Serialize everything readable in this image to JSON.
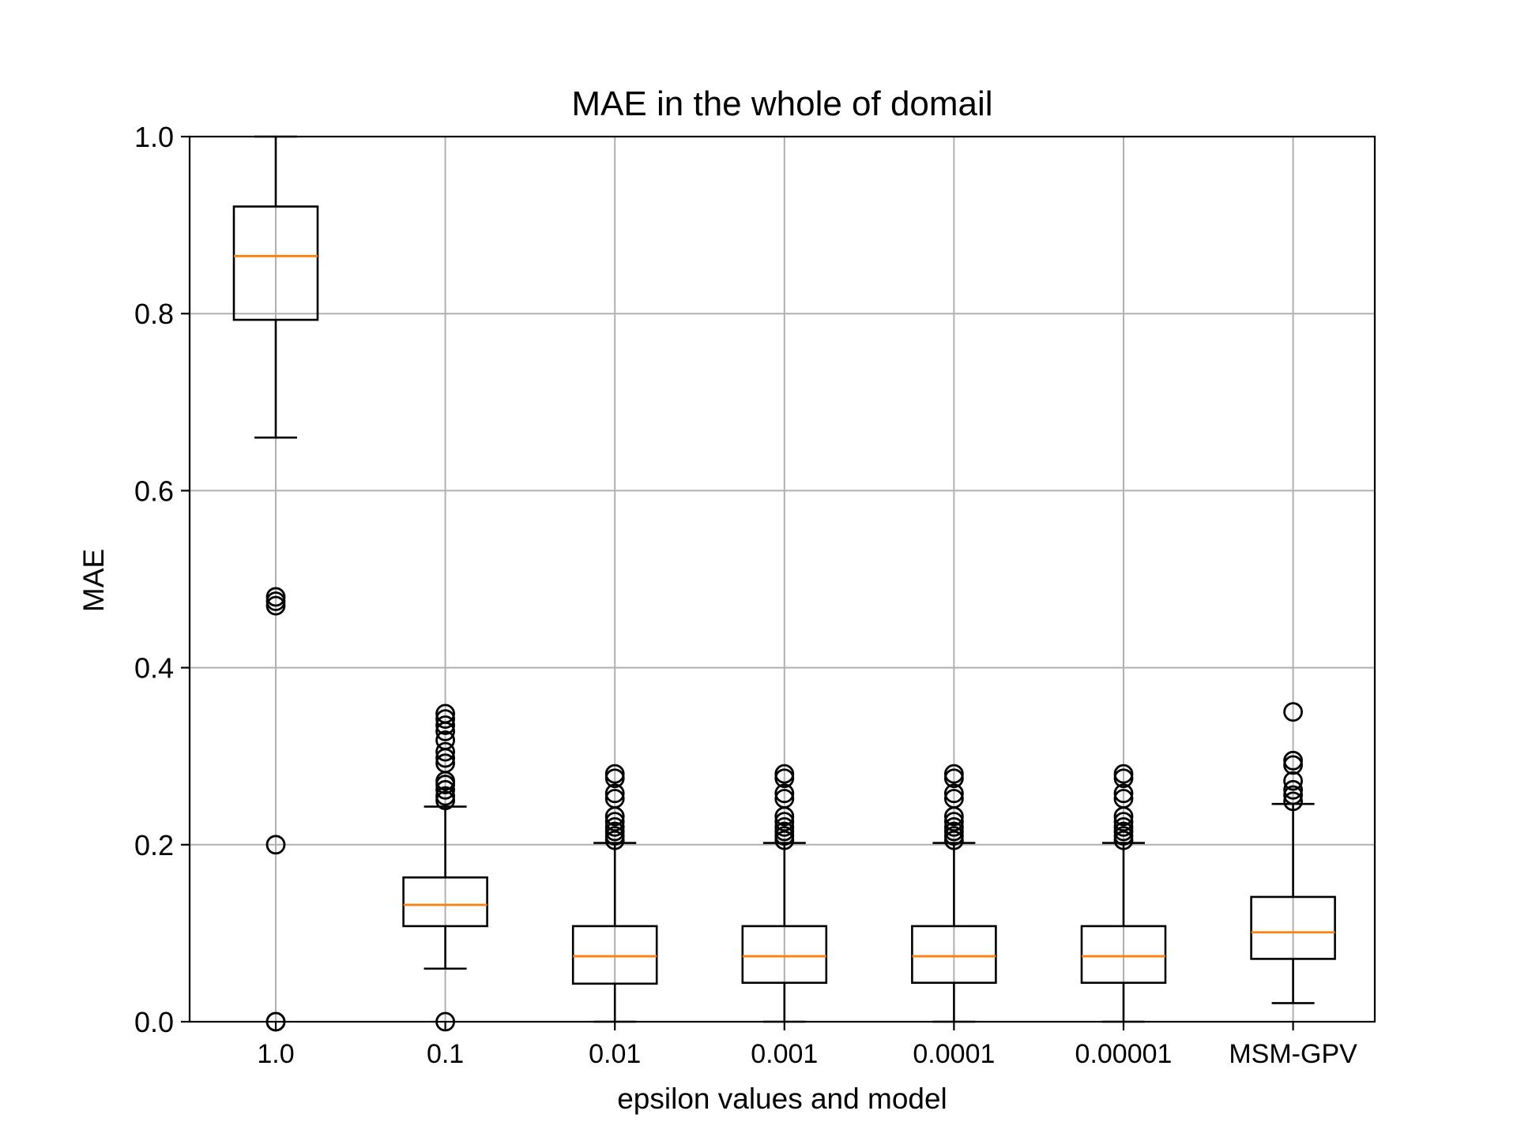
{
  "chart_data": {
    "type": "boxplot",
    "title": "MAE in the whole of domail",
    "xlabel": "epsilon values and model",
    "ylabel": "MAE",
    "ylim": [
      0.0,
      1.0
    ],
    "yticks": [
      "0.0",
      "0.2",
      "0.4",
      "0.6",
      "0.8",
      "1.0"
    ],
    "grid": true,
    "colors": {
      "box": "#000000",
      "median": "#ff7f0e",
      "grid": "#b0b0b0"
    },
    "categories": [
      "1.0",
      "0.1",
      "0.01",
      "0.001",
      "0.0001",
      "0.00001",
      "MSM-GPV"
    ],
    "boxes": [
      {
        "label": "1.0",
        "whisker_low": 0.66,
        "q1": 0.793,
        "median": 0.865,
        "q3": 0.921,
        "whisker_high": 1.0,
        "outliers": [
          0.2,
          0.0,
          0.0,
          0.47,
          0.475,
          0.48
        ]
      },
      {
        "label": "0.1",
        "whisker_low": 0.06,
        "q1": 0.108,
        "median": 0.132,
        "q3": 0.163,
        "whisker_high": 0.243,
        "outliers": [
          0.0,
          0.25,
          0.255,
          0.262,
          0.268,
          0.272,
          0.292,
          0.298,
          0.305,
          0.318,
          0.328,
          0.335,
          0.342,
          0.348
        ]
      },
      {
        "label": "0.01",
        "whisker_low": 0.0,
        "q1": 0.043,
        "median": 0.074,
        "q3": 0.108,
        "whisker_high": 0.202,
        "outliers": [
          0.205,
          0.21,
          0.215,
          0.22,
          0.226,
          0.232,
          0.252,
          0.258,
          0.275,
          0.28
        ]
      },
      {
        "label": "0.001",
        "whisker_low": 0.0,
        "q1": 0.044,
        "median": 0.074,
        "q3": 0.108,
        "whisker_high": 0.202,
        "outliers": [
          0.205,
          0.21,
          0.215,
          0.22,
          0.226,
          0.232,
          0.252,
          0.258,
          0.275,
          0.28
        ]
      },
      {
        "label": "0.0001",
        "whisker_low": 0.0,
        "q1": 0.044,
        "median": 0.074,
        "q3": 0.108,
        "whisker_high": 0.202,
        "outliers": [
          0.205,
          0.21,
          0.215,
          0.22,
          0.226,
          0.232,
          0.252,
          0.258,
          0.275,
          0.28
        ]
      },
      {
        "label": "0.00001",
        "whisker_low": 0.0,
        "q1": 0.044,
        "median": 0.074,
        "q3": 0.108,
        "whisker_high": 0.202,
        "outliers": [
          0.205,
          0.21,
          0.215,
          0.22,
          0.226,
          0.232,
          0.252,
          0.258,
          0.275,
          0.28
        ]
      },
      {
        "label": "MSM-GPV",
        "whisker_low": 0.021,
        "q1": 0.071,
        "median": 0.101,
        "q3": 0.141,
        "whisker_high": 0.246,
        "outliers": [
          0.249,
          0.256,
          0.262,
          0.272,
          0.29,
          0.295,
          0.35
        ]
      }
    ]
  }
}
